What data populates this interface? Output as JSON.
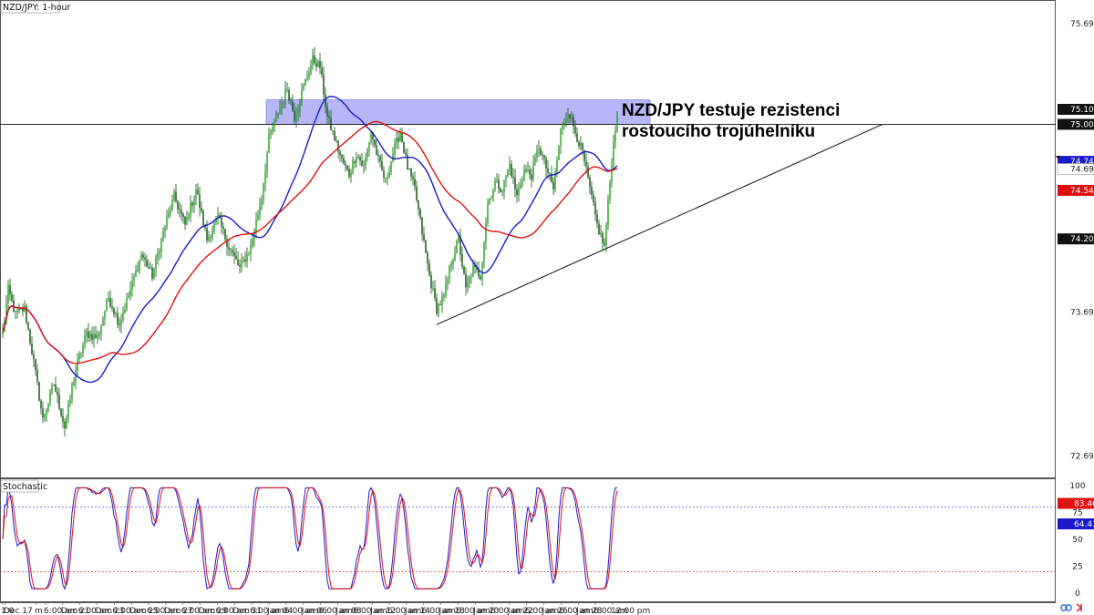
{
  "chart_data": [
    {
      "type": "candlestick",
      "title": "NZD/JPY: 1-hour",
      "annotation": [
        "NZD/JPY testuje rezistenci",
        "rostoucího trojúhelníku"
      ],
      "ylim": [
        72.55,
        75.85
      ],
      "y_ticks": [
        72.698,
        73.698,
        74.205,
        75.698
      ],
      "y_badges": [
        {
          "value": 75.104,
          "label": "75.104",
          "color": "#111111"
        },
        {
          "value": 75.0,
          "label": "75.001",
          "color": "#111111"
        },
        {
          "value": 74.743,
          "label": "74.743",
          "color": "#1a1acc"
        },
        {
          "value": 74.69,
          "label": "74.690",
          "color": "#ffffff"
        },
        {
          "value": 74.542,
          "label": "74.542",
          "color": "#e01010"
        },
        {
          "value": 74.205,
          "label": "74.205",
          "color": "#111111"
        }
      ],
      "x_tick_labels": [
        "1:0",
        "Dec 17",
        "m",
        "6:00 am",
        "Dec 21",
        "6:00 am",
        "Dec 23",
        "6:00 am",
        "Dec 25",
        "6:00 am",
        "Dec 27",
        "6:00 am",
        "Dec 29",
        "6:00 am",
        "Dec 31",
        "6:00 am",
        "Jan 04",
        "6:00 am",
        "Jan 06",
        "6:00 am",
        "Jan 08",
        "6:00 am",
        "Jan 12",
        "6:00 am",
        "Jan 14",
        "6:00 am",
        "Jan 18",
        "6:00 am",
        "Jan 20",
        "6:00 am",
        "Jan 22",
        "6:00 am",
        "Jan 26",
        "6:00 am",
        "Jan 28",
        "6:00 am",
        "12:00 pm"
      ],
      "close_anchors": [
        [
          0,
          73.55
        ],
        [
          3,
          73.85
        ],
        [
          7,
          73.68
        ],
        [
          12,
          73.72
        ],
        [
          17,
          73.35
        ],
        [
          22,
          72.95
        ],
        [
          28,
          73.2
        ],
        [
          34,
          72.9
        ],
        [
          40,
          73.3
        ],
        [
          46,
          73.55
        ],
        [
          52,
          73.52
        ],
        [
          58,
          73.8
        ],
        [
          64,
          73.62
        ],
        [
          70,
          73.85
        ],
        [
          76,
          74.1
        ],
        [
          82,
          73.95
        ],
        [
          88,
          74.25
        ],
        [
          94,
          74.5
        ],
        [
          100,
          74.3
        ],
        [
          106,
          74.55
        ],
        [
          112,
          74.2
        ],
        [
          118,
          74.35
        ],
        [
          124,
          74.15
        ],
        [
          130,
          74.0
        ],
        [
          136,
          74.15
        ],
        [
          142,
          74.5
        ],
        [
          146,
          74.9
        ],
        [
          150,
          75.05
        ],
        [
          156,
          75.25
        ],
        [
          160,
          75.05
        ],
        [
          166,
          75.3
        ],
        [
          170,
          75.45
        ],
        [
          174,
          75.4
        ],
        [
          178,
          75.05
        ],
        [
          182,
          74.9
        ],
        [
          186,
          74.75
        ],
        [
          190,
          74.65
        ],
        [
          194,
          74.8
        ],
        [
          198,
          74.7
        ],
        [
          202,
          74.95
        ],
        [
          206,
          74.75
        ],
        [
          210,
          74.6
        ],
        [
          214,
          74.8
        ],
        [
          218,
          74.95
        ],
        [
          222,
          74.7
        ],
        [
          226,
          74.55
        ],
        [
          230,
          74.25
        ],
        [
          234,
          73.95
        ],
        [
          238,
          73.72
        ],
        [
          242,
          73.8
        ],
        [
          246,
          74.05
        ],
        [
          250,
          74.2
        ],
        [
          254,
          73.85
        ],
        [
          258,
          74.0
        ],
        [
          262,
          73.95
        ],
        [
          266,
          74.45
        ],
        [
          270,
          74.6
        ],
        [
          274,
          74.55
        ],
        [
          278,
          74.72
        ],
        [
          282,
          74.5
        ],
        [
          286,
          74.68
        ],
        [
          290,
          74.65
        ],
        [
          294,
          74.85
        ],
        [
          298,
          74.7
        ],
        [
          302,
          74.55
        ],
        [
          306,
          74.95
        ],
        [
          310,
          75.1
        ],
        [
          314,
          74.95
        ],
        [
          318,
          74.8
        ],
        [
          322,
          74.55
        ],
        [
          326,
          74.3
        ],
        [
          330,
          74.15
        ],
        [
          334,
          74.75
        ],
        [
          337,
          75.1
        ]
      ],
      "series": [
        {
          "name": "",
          "type": "candlestick",
          "color": "#0a6e0a"
        },
        {
          "name": "",
          "type": "moving-average",
          "period": 100,
          "color": "#1a1acc"
        },
        {
          "name": "",
          "type": "moving-average",
          "period": 200,
          "color": "#e01010"
        }
      ],
      "horizontal_line": 75.0,
      "resistance_zone": [
        75.0,
        75.17
      ],
      "trendline": [
        [
          73.61
        ],
        [
          75.0
        ]
      ]
    },
    {
      "type": "line",
      "title": "Stochastic",
      "ylim": [
        0,
        100
      ],
      "y_ticks": [
        0,
        25,
        50,
        75,
        100
      ],
      "levels": [
        80,
        20
      ],
      "y_badges": [
        {
          "value": 83.46,
          "label": "83.46",
          "color": "#e01010"
        },
        {
          "value": 64.41,
          "label": "64.41",
          "color": "#1a1acc"
        }
      ],
      "series": [
        {
          "name": "",
          "color": "#1a1acc"
        },
        {
          "name": "",
          "color": "#e01010"
        }
      ]
    }
  ]
}
